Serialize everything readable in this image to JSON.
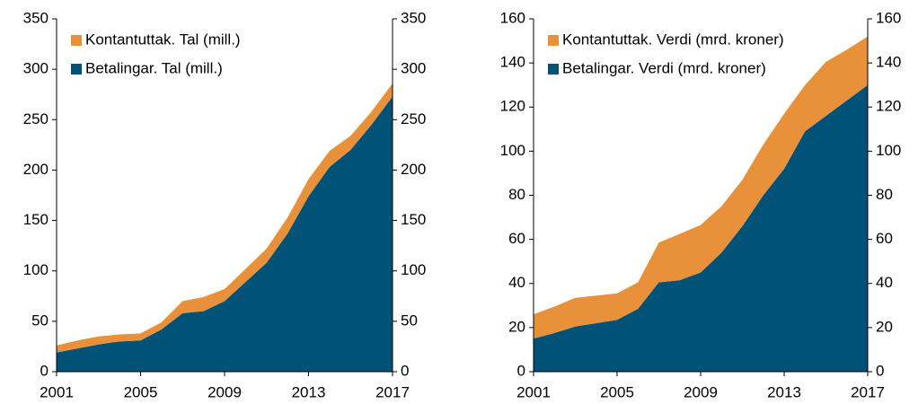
{
  "chart_data": [
    {
      "type": "area",
      "stacked": true,
      "x": [
        2001,
        2002,
        2003,
        2004,
        2005,
        2006,
        2007,
        2008,
        2009,
        2010,
        2011,
        2012,
        2013,
        2014,
        2015,
        2016,
        2017
      ],
      "xlim": [
        2001,
        2017
      ],
      "xticks": [
        2001,
        2005,
        2009,
        2013,
        2017
      ],
      "ylim": [
        0,
        350
      ],
      "yticks": [
        0,
        50,
        100,
        150,
        200,
        250,
        300,
        350
      ],
      "y2lim": [
        0,
        350
      ],
      "y2ticks": [
        0,
        50,
        100,
        150,
        200,
        250,
        300,
        350
      ],
      "legend": "upper left",
      "series": [
        {
          "name": "Betalingar. Tal (mill.)",
          "color": "#005377",
          "values": [
            19,
            23,
            27,
            30,
            31,
            42,
            58,
            60,
            70,
            89,
            108,
            137,
            174,
            203,
            220,
            245,
            273
          ]
        },
        {
          "name": "Kontantuttak. Tal (mill.)",
          "color": "#e8913a",
          "values": [
            7,
            8,
            8,
            7,
            7,
            7,
            12,
            14,
            12,
            13,
            14,
            16,
            17,
            16,
            14,
            13,
            13
          ]
        }
      ]
    },
    {
      "type": "area",
      "stacked": true,
      "x": [
        2001,
        2002,
        2003,
        2004,
        2005,
        2006,
        2007,
        2008,
        2009,
        2010,
        2011,
        2012,
        2013,
        2014,
        2015,
        2016,
        2017
      ],
      "xlim": [
        2001,
        2017
      ],
      "xticks": [
        2001,
        2005,
        2009,
        2013,
        2017
      ],
      "ylim": [
        0,
        160
      ],
      "yticks": [
        0,
        20,
        40,
        60,
        80,
        100,
        120,
        140,
        160
      ],
      "y2lim": [
        0,
        160
      ],
      "y2ticks": [
        0,
        20,
        40,
        60,
        80,
        100,
        120,
        140,
        160
      ],
      "legend": "upper left",
      "series": [
        {
          "name": "Betalingar. Verdi (mrd. kroner)",
          "color": "#005377",
          "values": [
            15,
            17.5,
            20.5,
            22,
            23.5,
            28.5,
            40.5,
            41.5,
            45,
            54,
            66,
            80,
            92,
            109,
            116,
            123,
            130
          ]
        },
        {
          "name": "Kontantuttak. Verdi (mrd. kroner)",
          "color": "#e8913a",
          "values": [
            11,
            12,
            13,
            12.5,
            12,
            12,
            18,
            21,
            21.5,
            21,
            21,
            23,
            25,
            21,
            24.5,
            23,
            22
          ]
        }
      ]
    }
  ]
}
